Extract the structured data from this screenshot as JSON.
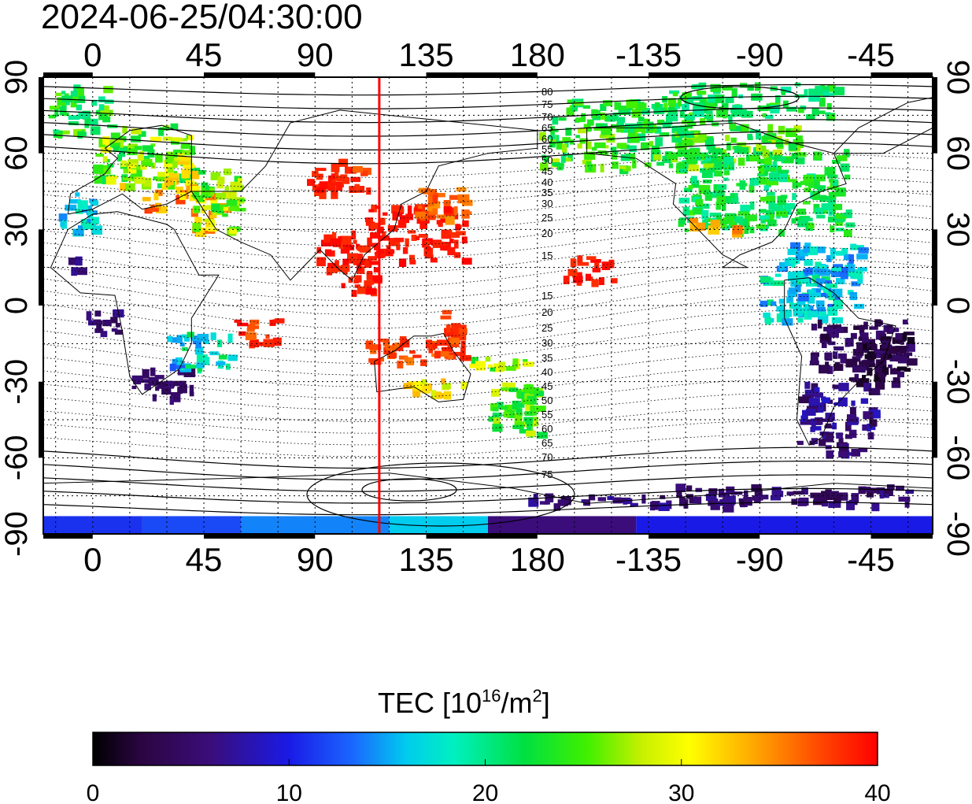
{
  "title": "2024-06-25/04:30:00",
  "map": {
    "lon_ticks_top": [
      "0",
      "45",
      "90",
      "135",
      "180",
      "-135",
      "-90",
      "-45"
    ],
    "lon_ticks_bottom": [
      "0",
      "45",
      "90",
      "135",
      "180",
      "-135",
      "-90",
      "-45"
    ],
    "lat_ticks_left": [
      "90",
      "60",
      "30",
      "0",
      "-30",
      "-60",
      "-90"
    ],
    "lat_ticks_right": [
      "90",
      "60",
      "30",
      "0",
      "-30",
      "-60",
      "-90"
    ],
    "lon_range": [
      -20,
      340
    ],
    "lat_range": [
      -90,
      90
    ],
    "grid": "dotted, 15 degree spacing",
    "meridian_line": {
      "lon": 116,
      "color": "#ff0000"
    },
    "contour_labels": [
      "80",
      "75",
      "70",
      "65",
      "60",
      "55",
      "50",
      "45",
      "40",
      "35",
      "30",
      "25",
      "20",
      "15",
      "15",
      "20",
      "25",
      "30",
      "35",
      "40",
      "45",
      "50",
      "55",
      "60",
      "65",
      "70",
      "75"
    ],
    "colors": {
      "frame": "#000000",
      "coast": "#000000",
      "contour": "#000000"
    }
  },
  "colorbar": {
    "title": "TEC  [10",
    "title_sup": "16",
    "title_unit": "/m",
    "title_unit_sup": "2",
    "title_close": "]",
    "ticks": [
      "0",
      "10",
      "20",
      "30",
      "40"
    ],
    "range": [
      0,
      40
    ],
    "colormap": "black-purple-blue-cyan-green-yellow-red"
  }
}
